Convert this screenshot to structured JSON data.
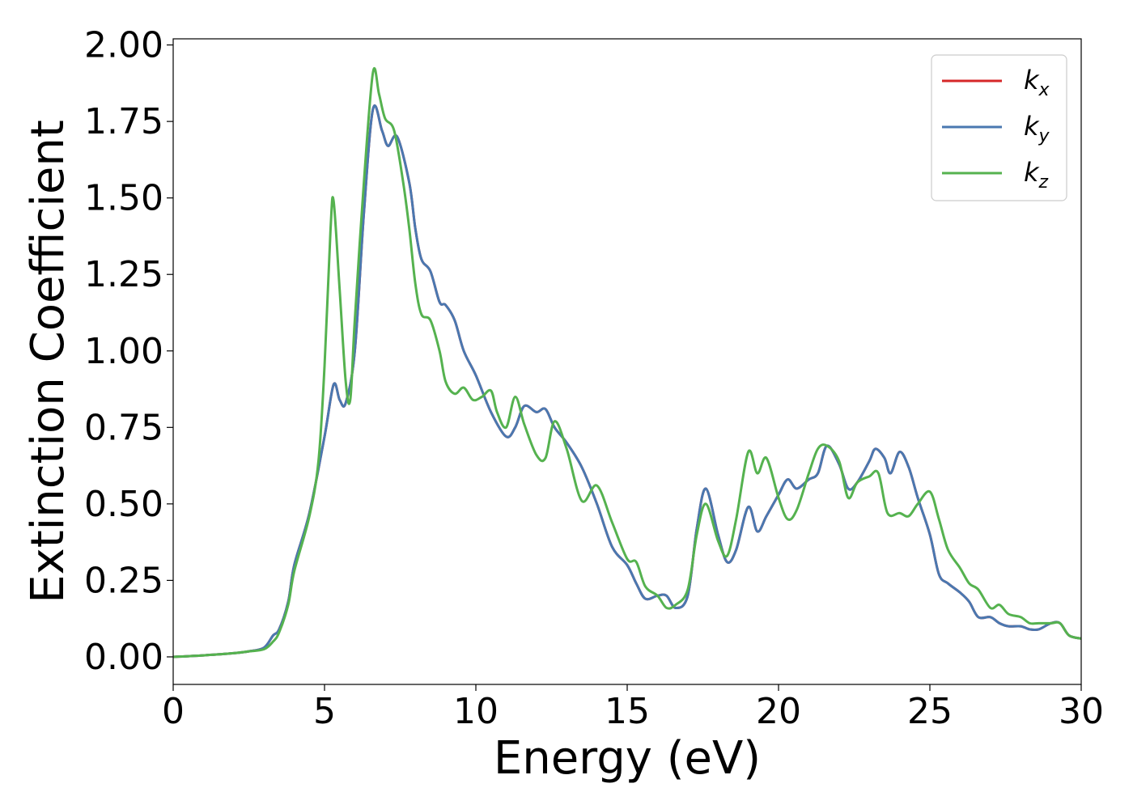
{
  "chart_data": {
    "type": "line",
    "title": "",
    "xlabel": "Energy (eV)",
    "ylabel": "Extinction Coefficient",
    "xlim": [
      0,
      30
    ],
    "ylim": [
      -0.09,
      2.02
    ],
    "x_ticks": [
      "0",
      "5",
      "10",
      "15",
      "20",
      "25",
      "30"
    ],
    "x_tick_values": [
      0,
      5,
      10,
      15,
      20,
      25,
      30
    ],
    "y_ticks": [
      "0.00",
      "0.25",
      "0.50",
      "0.75",
      "1.00",
      "1.25",
      "1.50",
      "1.75",
      "2.00"
    ],
    "y_tick_values": [
      0,
      0.25,
      0.5,
      0.75,
      1.0,
      1.25,
      1.5,
      1.75,
      2.0
    ],
    "grid": false,
    "legend_position": "top-right",
    "series": [
      {
        "name": "k_x",
        "label_base": "k",
        "label_sub": "x",
        "color": "#d62728",
        "x": [
          0,
          1,
          2,
          2.5,
          3.0,
          3.3,
          3.5,
          3.8,
          4.0,
          4.5,
          5.0,
          5.3,
          5.5,
          5.7,
          6.0,
          6.3,
          6.6,
          6.9,
          7.1,
          7.4,
          7.8,
          8.0,
          8.2,
          8.5,
          8.8,
          9.0,
          9.3,
          9.6,
          10.0,
          10.5,
          11.0,
          11.3,
          11.6,
          12.0,
          12.3,
          12.6,
          13.0,
          13.5,
          14.0,
          14.5,
          15.0,
          15.3,
          15.6,
          16.0,
          16.3,
          16.6,
          17.0,
          17.3,
          17.6,
          18.0,
          18.3,
          18.6,
          19.0,
          19.3,
          19.6,
          20.0,
          20.3,
          20.6,
          21.0,
          21.3,
          21.6,
          22.0,
          22.3,
          22.6,
          23.0,
          23.2,
          23.5,
          23.7,
          24.0,
          24.3,
          24.6,
          25.0,
          25.3,
          25.6,
          26.0,
          26.3,
          26.6,
          27.0,
          27.3,
          27.6,
          28.0,
          28.3,
          28.6,
          29.0,
          29.3,
          29.6,
          30.0
        ],
        "y": [
          0.0,
          0.005,
          0.012,
          0.018,
          0.03,
          0.07,
          0.09,
          0.18,
          0.3,
          0.47,
          0.72,
          0.89,
          0.84,
          0.83,
          1.0,
          1.45,
          1.79,
          1.72,
          1.67,
          1.7,
          1.55,
          1.4,
          1.3,
          1.26,
          1.16,
          1.15,
          1.1,
          1.0,
          0.92,
          0.8,
          0.72,
          0.75,
          0.82,
          0.8,
          0.81,
          0.75,
          0.7,
          0.62,
          0.5,
          0.36,
          0.3,
          0.24,
          0.19,
          0.2,
          0.2,
          0.16,
          0.2,
          0.42,
          0.55,
          0.4,
          0.31,
          0.35,
          0.49,
          0.41,
          0.46,
          0.53,
          0.58,
          0.55,
          0.58,
          0.6,
          0.69,
          0.63,
          0.55,
          0.57,
          0.64,
          0.68,
          0.65,
          0.6,
          0.67,
          0.62,
          0.52,
          0.4,
          0.27,
          0.24,
          0.21,
          0.18,
          0.13,
          0.13,
          0.11,
          0.1,
          0.1,
          0.09,
          0.09,
          0.11,
          0.11,
          0.07,
          0.06
        ]
      },
      {
        "name": "k_y",
        "label_base": "k",
        "label_sub": "y",
        "color": "#4a78b0",
        "x": [
          0,
          1,
          2,
          2.5,
          3.0,
          3.3,
          3.5,
          3.8,
          4.0,
          4.5,
          5.0,
          5.3,
          5.5,
          5.7,
          6.0,
          6.3,
          6.6,
          6.9,
          7.1,
          7.4,
          7.8,
          8.0,
          8.2,
          8.5,
          8.8,
          9.0,
          9.3,
          9.6,
          10.0,
          10.5,
          11.0,
          11.3,
          11.6,
          12.0,
          12.3,
          12.6,
          13.0,
          13.5,
          14.0,
          14.5,
          15.0,
          15.3,
          15.6,
          16.0,
          16.3,
          16.6,
          17.0,
          17.3,
          17.6,
          18.0,
          18.3,
          18.6,
          19.0,
          19.3,
          19.6,
          20.0,
          20.3,
          20.6,
          21.0,
          21.3,
          21.6,
          22.0,
          22.3,
          22.6,
          23.0,
          23.2,
          23.5,
          23.7,
          24.0,
          24.3,
          24.6,
          25.0,
          25.3,
          25.6,
          26.0,
          26.3,
          26.6,
          27.0,
          27.3,
          27.6,
          28.0,
          28.3,
          28.6,
          29.0,
          29.3,
          29.6,
          30.0
        ],
        "y": [
          0.0,
          0.005,
          0.012,
          0.018,
          0.03,
          0.07,
          0.09,
          0.18,
          0.3,
          0.47,
          0.72,
          0.89,
          0.84,
          0.83,
          1.0,
          1.45,
          1.79,
          1.72,
          1.67,
          1.7,
          1.55,
          1.4,
          1.3,
          1.26,
          1.16,
          1.15,
          1.1,
          1.0,
          0.92,
          0.8,
          0.72,
          0.75,
          0.82,
          0.8,
          0.81,
          0.75,
          0.7,
          0.62,
          0.5,
          0.36,
          0.3,
          0.24,
          0.19,
          0.2,
          0.2,
          0.16,
          0.2,
          0.42,
          0.55,
          0.4,
          0.31,
          0.35,
          0.49,
          0.41,
          0.46,
          0.53,
          0.58,
          0.55,
          0.58,
          0.6,
          0.69,
          0.63,
          0.55,
          0.57,
          0.64,
          0.68,
          0.65,
          0.6,
          0.67,
          0.62,
          0.52,
          0.4,
          0.27,
          0.24,
          0.21,
          0.18,
          0.13,
          0.13,
          0.11,
          0.1,
          0.1,
          0.09,
          0.09,
          0.11,
          0.11,
          0.07,
          0.06
        ]
      },
      {
        "name": "k_z",
        "label_base": "k",
        "label_sub": "z",
        "color": "#55b24f",
        "x": [
          0,
          1,
          2,
          2.5,
          3.0,
          3.3,
          3.5,
          3.8,
          4.0,
          4.5,
          4.8,
          5.0,
          5.2,
          5.3,
          5.5,
          5.7,
          5.85,
          6.0,
          6.3,
          6.6,
          6.8,
          7.0,
          7.3,
          7.6,
          7.8,
          8.0,
          8.2,
          8.5,
          8.8,
          9.0,
          9.3,
          9.6,
          9.9,
          10.2,
          10.5,
          10.7,
          11.0,
          11.3,
          11.6,
          12.0,
          12.3,
          12.6,
          13.0,
          13.5,
          14.0,
          14.5,
          15.0,
          15.3,
          15.6,
          16.0,
          16.3,
          16.6,
          17.0,
          17.3,
          17.6,
          18.0,
          18.3,
          18.6,
          19.0,
          19.3,
          19.6,
          20.0,
          20.3,
          20.6,
          21.0,
          21.3,
          21.6,
          22.0,
          22.3,
          22.6,
          23.0,
          23.3,
          23.6,
          24.0,
          24.3,
          24.6,
          25.0,
          25.3,
          25.6,
          26.0,
          26.3,
          26.6,
          27.0,
          27.3,
          27.6,
          28.0,
          28.3,
          28.6,
          29.0,
          29.3,
          29.6,
          30.0
        ],
        "y": [
          0.0,
          0.005,
          0.012,
          0.018,
          0.025,
          0.05,
          0.08,
          0.17,
          0.28,
          0.46,
          0.64,
          0.95,
          1.4,
          1.49,
          1.2,
          0.9,
          0.84,
          1.1,
          1.55,
          1.91,
          1.84,
          1.76,
          1.72,
          1.55,
          1.4,
          1.22,
          1.12,
          1.1,
          1.0,
          0.9,
          0.86,
          0.88,
          0.84,
          0.85,
          0.87,
          0.8,
          0.75,
          0.85,
          0.76,
          0.66,
          0.65,
          0.77,
          0.68,
          0.51,
          0.56,
          0.44,
          0.32,
          0.31,
          0.23,
          0.2,
          0.16,
          0.17,
          0.22,
          0.4,
          0.5,
          0.38,
          0.33,
          0.45,
          0.67,
          0.6,
          0.65,
          0.52,
          0.45,
          0.48,
          0.6,
          0.68,
          0.69,
          0.64,
          0.52,
          0.57,
          0.59,
          0.6,
          0.47,
          0.47,
          0.46,
          0.5,
          0.54,
          0.45,
          0.35,
          0.29,
          0.24,
          0.22,
          0.16,
          0.17,
          0.14,
          0.13,
          0.11,
          0.11,
          0.11,
          0.11,
          0.07,
          0.06
        ]
      }
    ]
  }
}
